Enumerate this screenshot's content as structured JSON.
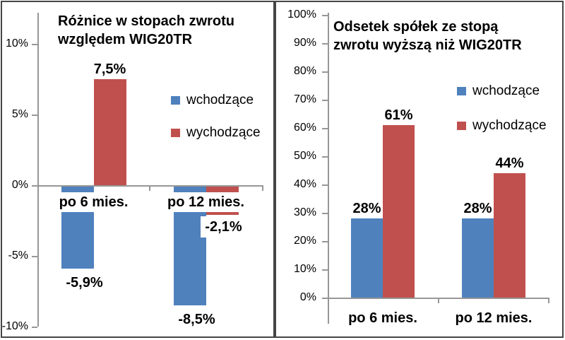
{
  "figure": {
    "background": "#FFFFFF",
    "border_color": "#454545",
    "axis_color": "#979797",
    "series_colors": {
      "wchodzace": "#4F81BD",
      "wychodzace": "#C0504D"
    }
  },
  "chart_data": [
    {
      "type": "bar",
      "title": "Różnice w stopach zwrotu względem WIG20TR",
      "title_lines": [
        "Różnice w stopach zwrotu",
        "względem WIG20TR"
      ],
      "categories": [
        "po 6 mies.",
        "po 12 mies."
      ],
      "series": [
        {
          "name": "wchodzące",
          "color": "#4F81BD",
          "values": [
            -5.9,
            -8.5
          ],
          "data_labels": [
            "-5,9%",
            "-8,5%"
          ]
        },
        {
          "name": "wychodzące",
          "color": "#C0504D",
          "values": [
            7.5,
            -2.1
          ],
          "data_labels": [
            "7,5%",
            "-2,1%"
          ]
        }
      ],
      "xlabel": "",
      "ylabel": "",
      "ylim": [
        -10,
        10
      ],
      "ytick_values": [
        10,
        5,
        0,
        -5,
        -10
      ],
      "ytick_labels": [
        "10%",
        "5%",
        "0%",
        "-5%",
        "-10%"
      ],
      "grid": false,
      "legend_position": "right"
    },
    {
      "type": "bar",
      "title": "Odsetek spółek ze stopą zwrotu wyższą niż WIG20TR",
      "title_lines": [
        "Odsetek spółek ze stopą",
        "zwrotu wyższą niż WIG20TR"
      ],
      "categories": [
        "po 6 mies.",
        "po 12 mies."
      ],
      "series": [
        {
          "name": "wchodzące",
          "color": "#4F81BD",
          "values": [
            28,
            28
          ],
          "data_labels": [
            "28%",
            "28%"
          ]
        },
        {
          "name": "wychodzące",
          "color": "#C0504D",
          "values": [
            61,
            44
          ],
          "data_labels": [
            "61%",
            "44%"
          ]
        }
      ],
      "xlabel": "",
      "ylabel": "",
      "ylim": [
        0,
        100
      ],
      "ytick_values": [
        100,
        90,
        80,
        70,
        60,
        50,
        40,
        30,
        20,
        10,
        0
      ],
      "ytick_labels": [
        "100%",
        "90%",
        "80%",
        "70%",
        "60%",
        "50%",
        "40%",
        "30%",
        "20%",
        "10%",
        "0%"
      ],
      "grid": false,
      "legend_position": "right"
    }
  ]
}
